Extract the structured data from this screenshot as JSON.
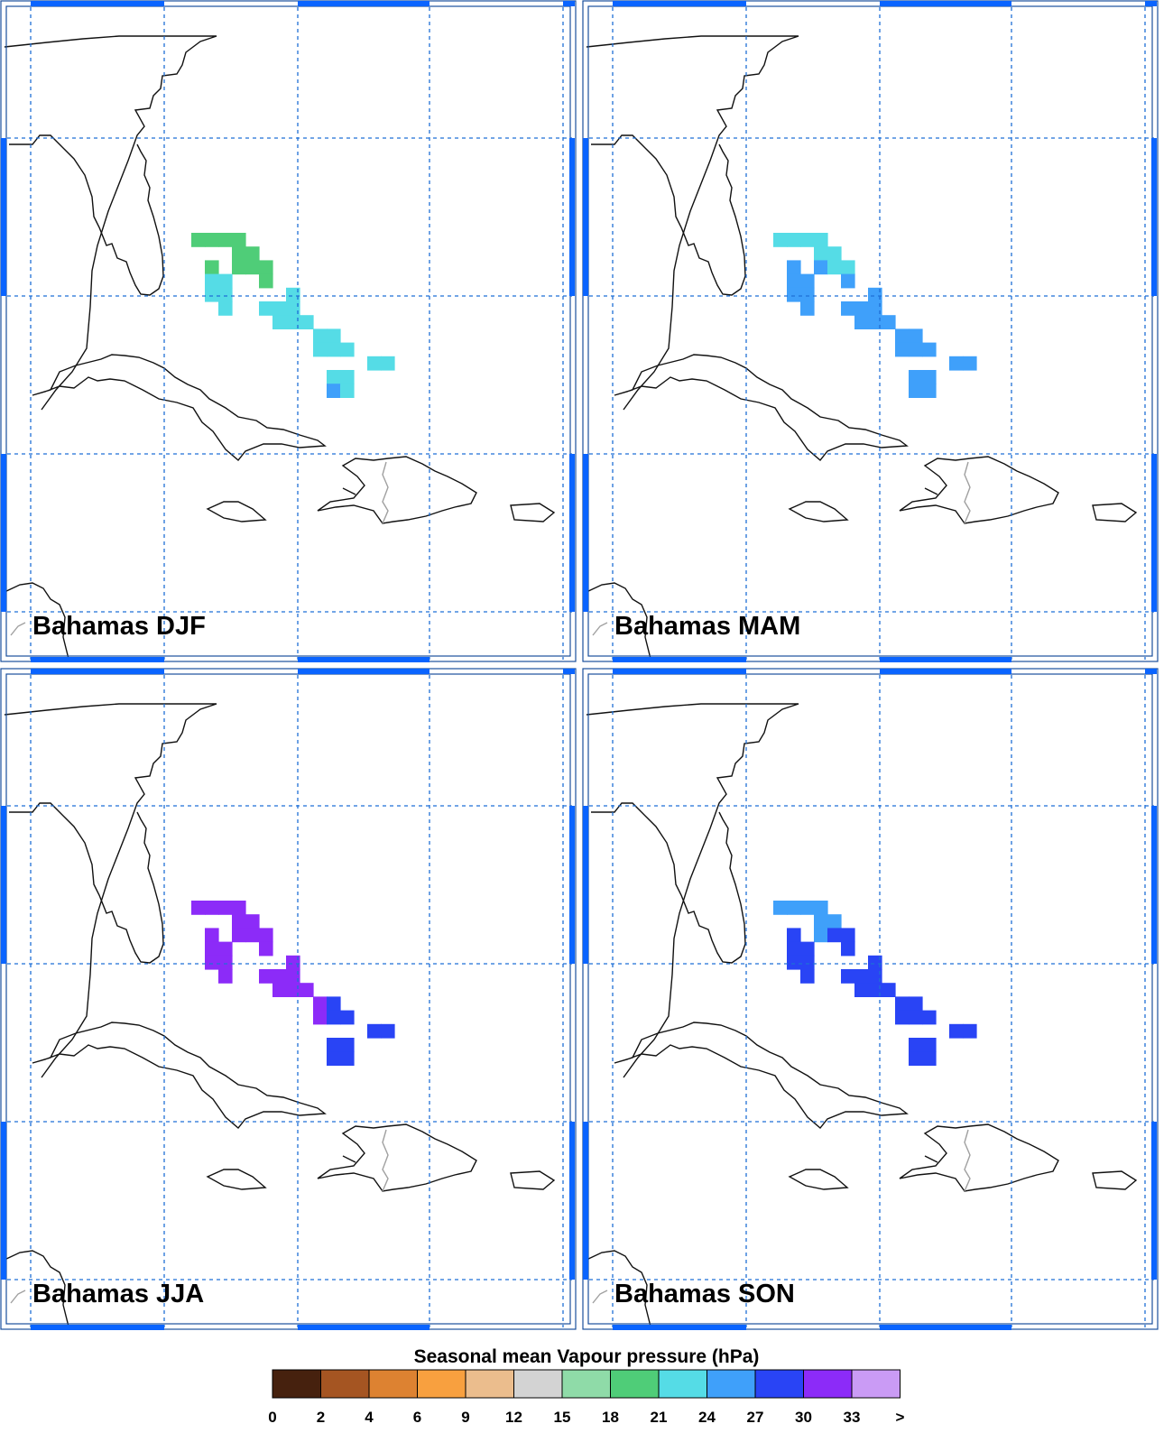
{
  "panels": [
    {
      "label": "Bahamas DJF",
      "cells": [
        [
          0,
          0,
          1
        ],
        [
          1,
          0,
          1
        ],
        [
          2,
          0,
          1
        ],
        [
          3,
          0,
          1
        ],
        [
          3,
          1,
          1
        ],
        [
          4,
          1,
          1
        ],
        [
          1,
          2,
          1
        ],
        [
          3,
          2,
          1
        ],
        [
          4,
          2,
          1
        ],
        [
          5,
          2,
          1
        ],
        [
          1,
          3,
          2
        ],
        [
          2,
          3,
          2
        ],
        [
          5,
          3,
          1
        ],
        [
          1,
          4,
          2
        ],
        [
          2,
          4,
          2
        ],
        [
          7,
          4,
          2
        ],
        [
          2,
          5,
          2
        ],
        [
          5,
          5,
          2
        ],
        [
          6,
          5,
          2
        ],
        [
          7,
          5,
          2
        ],
        [
          6,
          6,
          2
        ],
        [
          7,
          6,
          2
        ],
        [
          8,
          6,
          2
        ],
        [
          9,
          7,
          2
        ],
        [
          10,
          7,
          2
        ],
        [
          9,
          8,
          2
        ],
        [
          10,
          8,
          2
        ],
        [
          11,
          8,
          2
        ],
        [
          13,
          9,
          2
        ],
        [
          14,
          9,
          2
        ],
        [
          10,
          10,
          2
        ],
        [
          11,
          10,
          2
        ],
        [
          10,
          11,
          3
        ],
        [
          11,
          11,
          2
        ]
      ]
    },
    {
      "label": "Bahamas MAM",
      "cells": [
        [
          0,
          0,
          2
        ],
        [
          1,
          0,
          2
        ],
        [
          2,
          0,
          2
        ],
        [
          3,
          0,
          2
        ],
        [
          3,
          1,
          2
        ],
        [
          4,
          1,
          2
        ],
        [
          1,
          2,
          3
        ],
        [
          3,
          2,
          3
        ],
        [
          4,
          2,
          2
        ],
        [
          5,
          2,
          2
        ],
        [
          1,
          3,
          3
        ],
        [
          2,
          3,
          3
        ],
        [
          5,
          3,
          3
        ],
        [
          1,
          4,
          3
        ],
        [
          2,
          4,
          3
        ],
        [
          7,
          4,
          3
        ],
        [
          2,
          5,
          3
        ],
        [
          5,
          5,
          3
        ],
        [
          6,
          5,
          3
        ],
        [
          7,
          5,
          3
        ],
        [
          6,
          6,
          3
        ],
        [
          7,
          6,
          3
        ],
        [
          8,
          6,
          3
        ],
        [
          9,
          7,
          3
        ],
        [
          10,
          7,
          3
        ],
        [
          9,
          8,
          3
        ],
        [
          10,
          8,
          3
        ],
        [
          11,
          8,
          3
        ],
        [
          13,
          9,
          3
        ],
        [
          14,
          9,
          3
        ],
        [
          10,
          10,
          3
        ],
        [
          11,
          10,
          3
        ],
        [
          10,
          11,
          3
        ],
        [
          11,
          11,
          3
        ]
      ]
    },
    {
      "label": "Bahamas JJA",
      "cells": [
        [
          0,
          0,
          5
        ],
        [
          1,
          0,
          5
        ],
        [
          2,
          0,
          5
        ],
        [
          3,
          0,
          5
        ],
        [
          3,
          1,
          5
        ],
        [
          4,
          1,
          5
        ],
        [
          1,
          2,
          5
        ],
        [
          3,
          2,
          5
        ],
        [
          4,
          2,
          5
        ],
        [
          5,
          2,
          5
        ],
        [
          1,
          3,
          5
        ],
        [
          2,
          3,
          5
        ],
        [
          5,
          3,
          5
        ],
        [
          1,
          4,
          5
        ],
        [
          2,
          4,
          5
        ],
        [
          7,
          4,
          5
        ],
        [
          2,
          5,
          5
        ],
        [
          5,
          5,
          5
        ],
        [
          6,
          5,
          5
        ],
        [
          7,
          5,
          5
        ],
        [
          6,
          6,
          5
        ],
        [
          7,
          6,
          5
        ],
        [
          8,
          6,
          5
        ],
        [
          9,
          7,
          5
        ],
        [
          10,
          7,
          4
        ],
        [
          9,
          8,
          5
        ],
        [
          10,
          8,
          4
        ],
        [
          11,
          8,
          4
        ],
        [
          13,
          9,
          4
        ],
        [
          14,
          9,
          4
        ],
        [
          10,
          10,
          4
        ],
        [
          11,
          10,
          4
        ],
        [
          10,
          11,
          4
        ],
        [
          11,
          11,
          4
        ]
      ]
    },
    {
      "label": "Bahamas SON",
      "cells": [
        [
          0,
          0,
          3
        ],
        [
          1,
          0,
          3
        ],
        [
          2,
          0,
          3
        ],
        [
          3,
          0,
          3
        ],
        [
          3,
          1,
          3
        ],
        [
          4,
          1,
          3
        ],
        [
          1,
          2,
          4
        ],
        [
          3,
          2,
          3
        ],
        [
          4,
          2,
          4
        ],
        [
          5,
          2,
          4
        ],
        [
          1,
          3,
          4
        ],
        [
          2,
          3,
          4
        ],
        [
          5,
          3,
          4
        ],
        [
          1,
          4,
          4
        ],
        [
          2,
          4,
          4
        ],
        [
          7,
          4,
          4
        ],
        [
          2,
          5,
          4
        ],
        [
          5,
          5,
          4
        ],
        [
          6,
          5,
          4
        ],
        [
          7,
          5,
          4
        ],
        [
          6,
          6,
          4
        ],
        [
          7,
          6,
          4
        ],
        [
          8,
          6,
          4
        ],
        [
          9,
          7,
          4
        ],
        [
          10,
          7,
          4
        ],
        [
          9,
          8,
          4
        ],
        [
          10,
          8,
          4
        ],
        [
          11,
          8,
          4
        ],
        [
          13,
          9,
          4
        ],
        [
          14,
          9,
          4
        ],
        [
          10,
          10,
          4
        ],
        [
          11,
          10,
          4
        ],
        [
          10,
          11,
          4
        ],
        [
          11,
          11,
          4
        ]
      ]
    }
  ],
  "cell_color_scale": [
    "#8fdba8",
    "#4fcd78",
    "#55dce6",
    "#3fa0fa",
    "#2944f5",
    "#8c2bf8"
  ],
  "colorbar": {
    "title": "Seasonal mean Vapour pressure (hPa)",
    "colors": [
      "#46210e",
      "#a55522",
      "#dd8231",
      "#f8a03f",
      "#ebbd8d",
      "#d3d3d3",
      "#8fdba8",
      "#4fcd78",
      "#55dce6",
      "#3fa0fa",
      "#2944f5",
      "#8c2bf8",
      "#ca9bf5"
    ],
    "labels": [
      "0",
      "2",
      "4",
      "6",
      "9",
      "12",
      "15",
      "18",
      "21",
      "24",
      "27",
      "30",
      "33",
      ">"
    ]
  },
  "colors": {
    "frame_tick": "#0a64ff",
    "grid": "#1f6fd6",
    "coast": "#111111",
    "border": "#a0a0a0"
  }
}
